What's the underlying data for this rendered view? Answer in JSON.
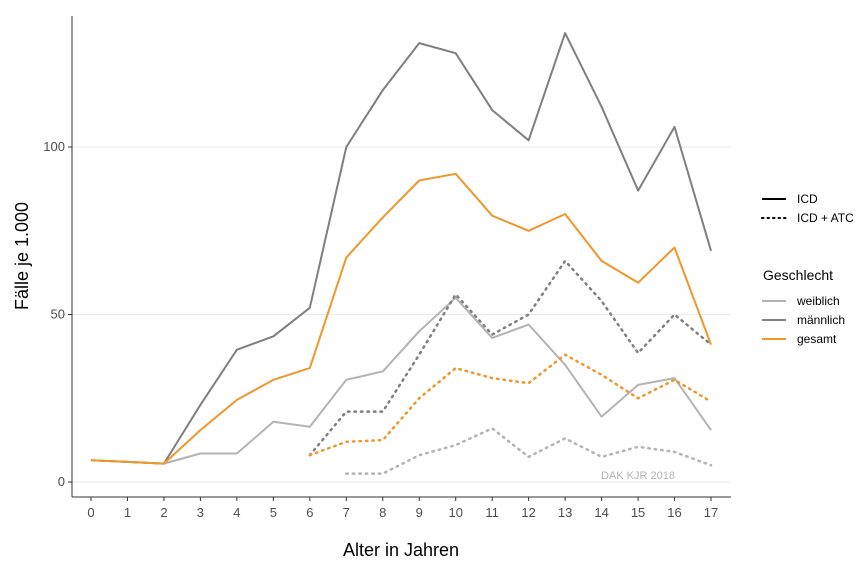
{
  "chart_data": {
    "type": "line",
    "xlabel": "Alter in Jahren",
    "ylabel": "Fälle je 1.000",
    "x": [
      0,
      1,
      2,
      3,
      4,
      5,
      6,
      7,
      8,
      9,
      10,
      11,
      12,
      13,
      14,
      15,
      16,
      17
    ],
    "xlim": [
      0,
      17
    ],
    "ylim": [
      0,
      135
    ],
    "yticks": [
      0,
      50,
      100
    ],
    "grid": "horizontal major lines",
    "watermark": "DAK KJR 2018",
    "legend": {
      "placement": "right",
      "linetype_items": [
        {
          "label": "ICD",
          "style": "solid"
        },
        {
          "label": "ICD + ATC",
          "style": "dotted"
        }
      ],
      "color_title": "Geschlecht",
      "color_items": [
        {
          "label": "weiblich",
          "color": "#b3b3b3"
        },
        {
          "label": "männlich",
          "color": "#7f7f7f"
        },
        {
          "label": "gesamt",
          "color": "#f0962a"
        }
      ]
    },
    "series": [
      {
        "name": "weiblich",
        "linetype": "ICD",
        "color": "#b3b3b3",
        "values": [
          6.5,
          6,
          5.5,
          8.5,
          8.5,
          18,
          16.5,
          30.5,
          33,
          45,
          55,
          43,
          47,
          35,
          19.5,
          29,
          31,
          15.5
        ]
      },
      {
        "name": "männlich",
        "linetype": "ICD",
        "color": "#7f7f7f",
        "values": [
          6.5,
          6,
          5.5,
          23,
          39.5,
          43.5,
          52,
          100,
          117,
          131,
          128,
          111,
          102,
          134,
          112,
          87,
          106,
          69
        ]
      },
      {
        "name": "gesamt",
        "linetype": "ICD",
        "color": "#f0962a",
        "values": [
          6.5,
          6,
          5.5,
          15.5,
          24.5,
          30.5,
          34,
          67,
          79,
          90,
          92,
          79.5,
          75,
          80,
          66,
          59.5,
          70,
          41
        ]
      },
      {
        "name": "weiblich",
        "linetype": "ICD + ATC",
        "color": "#b3b3b3",
        "values": [
          null,
          null,
          null,
          null,
          null,
          null,
          null,
          2.5,
          2.5,
          8,
          11,
          16,
          7.5,
          13,
          7.5,
          10.5,
          9,
          5
        ]
      },
      {
        "name": "männlich",
        "linetype": "ICD + ATC",
        "color": "#7f7f7f",
        "values": [
          null,
          null,
          null,
          null,
          null,
          null,
          8,
          21,
          21,
          38,
          56,
          44,
          50,
          66,
          54,
          38.5,
          50,
          41
        ]
      },
      {
        "name": "gesamt",
        "linetype": "ICD + ATC",
        "color": "#f0962a",
        "values": [
          null,
          null,
          null,
          null,
          null,
          null,
          8,
          12,
          12.5,
          25,
          34,
          31,
          29.5,
          38,
          32,
          25,
          30.5,
          24
        ]
      }
    ]
  }
}
